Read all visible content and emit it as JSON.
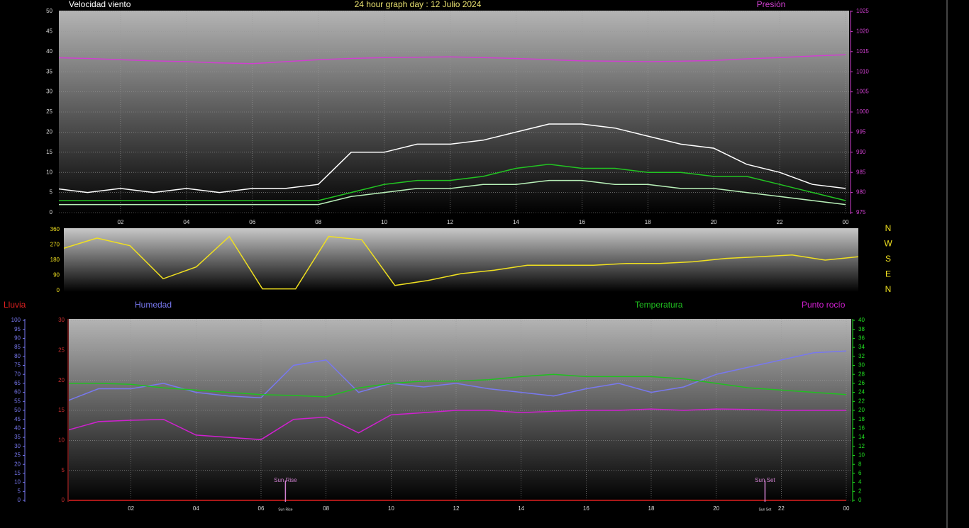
{
  "chart_data": [
    {
      "type": "line",
      "title": "24 hour graph day : 12 Julio 2024",
      "ylabel": "Velocidad viento",
      "y2label": "Presión",
      "x": [
        0,
        1,
        2,
        3,
        4,
        5,
        6,
        7,
        8,
        9,
        10,
        11,
        12,
        13,
        14,
        15,
        16,
        17,
        18,
        19,
        20,
        21,
        22,
        23,
        24
      ],
      "xlim": [
        0,
        24
      ],
      "xticks": [
        {
          "value": 2,
          "label": "02"
        },
        {
          "value": 4,
          "label": "04"
        },
        {
          "value": 6,
          "label": "06"
        },
        {
          "value": 8,
          "label": "08"
        },
        10,
        12,
        14,
        16,
        18,
        20,
        22,
        {
          "value": 24,
          "label": "00"
        }
      ],
      "ylim": [
        0,
        50
      ],
      "yticks": [
        0,
        5,
        10,
        15,
        20,
        25,
        30,
        35,
        40,
        45,
        50
      ],
      "y2lim": [
        975,
        1025
      ],
      "y2ticks": [
        975,
        980,
        985,
        990,
        995,
        1000,
        1005,
        1010,
        1015,
        1020,
        1025
      ],
      "grid": true,
      "series": [
        {
          "color": "#ffffff",
          "values": [
            6,
            5,
            6,
            5,
            6,
            5,
            6,
            6,
            7,
            15,
            15,
            17,
            17,
            18,
            20,
            22,
            22,
            21,
            19,
            17,
            16,
            12,
            10,
            7,
            6
          ]
        },
        {
          "color": "#22c422",
          "values": [
            3,
            3,
            3,
            3,
            3,
            3,
            3,
            3,
            3,
            5,
            7,
            8,
            8,
            9,
            11,
            12,
            11,
            11,
            10,
            10,
            9,
            9,
            7,
            5,
            3
          ]
        },
        {
          "color": "#b8f0b8",
          "values": [
            2,
            2,
            2,
            2,
            2,
            2,
            2,
            2,
            2,
            4,
            5,
            6,
            6,
            7,
            7,
            8,
            8,
            7,
            7,
            6,
            6,
            5,
            4,
            3,
            2
          ]
        },
        {
          "name": "Presión",
          "color": "#d040d0",
          "axis": "y2",
          "values": [
            1013.5,
            1013.3,
            1013,
            1012.7,
            1012.5,
            1012.2,
            1012,
            1012.5,
            1013,
            1013.3,
            1013.5,
            1013.6,
            1013.7,
            1013.5,
            1013.3,
            1013,
            1012.7,
            1012.6,
            1012.5,
            1012.6,
            1012.8,
            1013.2,
            1013.5,
            1013.9,
            1014.2
          ]
        }
      ]
    },
    {
      "type": "line",
      "x": [
        0,
        1,
        2,
        3,
        4,
        5,
        6,
        7,
        8,
        9,
        10,
        11,
        12,
        13,
        14,
        15,
        16,
        17,
        18,
        19,
        20,
        21,
        22,
        23,
        24
      ],
      "xlim": [
        0,
        24
      ],
      "ylim": [
        0,
        360
      ],
      "yticks": [
        0,
        90,
        180,
        270,
        360
      ],
      "compass_labels": [
        "N",
        "W",
        "S",
        "E",
        "N"
      ],
      "series": [
        {
          "color": "#f0e020",
          "values": [
            250,
            310,
            265,
            70,
            140,
            320,
            10,
            10,
            320,
            300,
            30,
            60,
            100,
            120,
            150,
            150,
            150,
            160,
            160,
            170,
            190,
            200,
            210,
            180,
            200
          ]
        }
      ]
    },
    {
      "type": "line",
      "x": [
        0,
        1,
        2,
        3,
        4,
        5,
        6,
        7,
        8,
        9,
        10,
        11,
        12,
        13,
        14,
        15,
        16,
        17,
        18,
        19,
        20,
        21,
        22,
        23,
        24
      ],
      "xlim": [
        0,
        24
      ],
      "xticks": [
        {
          "value": 2,
          "label": "02"
        },
        {
          "value": 4,
          "label": "04"
        },
        {
          "value": 6,
          "label": "06"
        },
        {
          "value": 8,
          "label": "08"
        },
        10,
        12,
        14,
        16,
        18,
        20,
        22,
        {
          "value": 24,
          "label": "00"
        }
      ],
      "ylim": [
        0,
        30
      ],
      "yticks": [
        0,
        5,
        10,
        15,
        20,
        25,
        30
      ],
      "y2lim": [
        0,
        40
      ],
      "y2ticks": [
        0,
        2,
        4,
        6,
        8,
        10,
        12,
        14,
        16,
        18,
        20,
        22,
        24,
        26,
        28,
        30,
        32,
        34,
        36,
        38,
        40
      ],
      "y3lim": [
        0,
        100
      ],
      "y3ticks": [
        0,
        5,
        10,
        15,
        20,
        25,
        30,
        35,
        40,
        45,
        50,
        55,
        60,
        65,
        70,
        75,
        80,
        85,
        90,
        95,
        100
      ],
      "grid": true,
      "series": [
        {
          "name": "Lluvia",
          "color": "#e02020",
          "values": [
            0,
            0,
            0,
            0,
            0,
            0,
            0,
            0,
            0,
            0,
            0,
            0,
            0,
            0,
            0,
            0,
            0,
            0,
            0,
            0,
            0,
            0,
            0,
            0,
            0
          ]
        },
        {
          "name": "Humedad",
          "color": "#7878f0",
          "axis": "y3",
          "values": [
            55,
            62,
            62,
            65,
            60,
            58,
            57,
            75,
            78,
            60,
            65,
            63,
            65,
            62,
            60,
            58,
            62,
            65,
            60,
            63,
            70,
            74,
            78,
            82,
            83
          ]
        },
        {
          "name": "Temperatura",
          "color": "#20c020",
          "axis": "y2",
          "values": [
            26,
            26,
            25.8,
            25,
            24.5,
            24,
            23.5,
            23.3,
            23,
            25,
            26,
            26.5,
            26.5,
            26.8,
            27.5,
            28,
            27.5,
            27.5,
            27.5,
            27,
            26,
            25,
            24.5,
            24,
            23.5
          ]
        },
        {
          "name": "Punto rocío",
          "color": "#d020d0",
          "axis": "y2",
          "values": [
            15.5,
            17.5,
            17.8,
            18,
            14.5,
            14,
            13.5,
            18,
            18.5,
            15,
            19,
            19.5,
            20,
            20,
            19.5,
            19.8,
            20,
            20,
            20.3,
            20,
            20.3,
            20.2,
            20,
            20,
            20
          ]
        }
      ],
      "annotations": [
        {
          "text": "Sun Rise",
          "x": 6.75
        },
        {
          "text": "Sun Set",
          "x": 21.5
        }
      ]
    }
  ]
}
